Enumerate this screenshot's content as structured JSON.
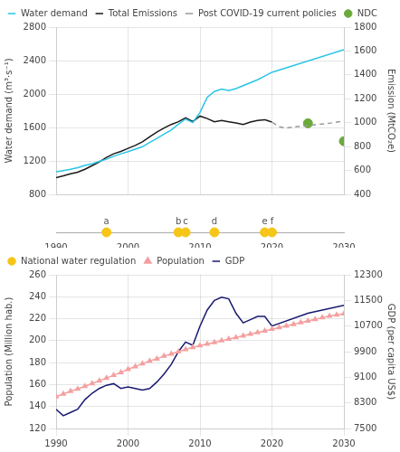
{
  "chart_data": [
    {
      "type": "line",
      "ylabel": "Water demand (m³·s⁻¹)",
      "y2label": "Emission (MtCO₂e)",
      "xlim": [
        1990,
        2030
      ],
      "xticks": [
        1990,
        2000,
        2010,
        2020,
        2030
      ],
      "ylim": [
        800,
        2800
      ],
      "yticks": [
        800,
        1200,
        1600,
        2000,
        2400,
        2800
      ],
      "y2lim": [
        400,
        1800
      ],
      "y2ticks": [
        400,
        600,
        800,
        1000,
        1200,
        1400,
        1600,
        1800
      ],
      "grid": true,
      "legend": "upper left",
      "tick_labels": "y",
      "series": [
        {
          "name": "Water demand",
          "color": "#29C5E6",
          "x": [
            1990,
            1991,
            1992,
            1993,
            1994,
            1995,
            1996,
            1997,
            1998,
            1999,
            2000,
            2001,
            2002,
            2003,
            2004,
            2005,
            2006,
            2007,
            2008,
            2009,
            2010,
            2011,
            2012,
            2013,
            2014,
            2015,
            2016,
            2017,
            2018,
            2019,
            2020
          ],
          "values": [
            1070,
            1085,
            1100,
            1120,
            1145,
            1165,
            1195,
            1220,
            1255,
            1285,
            1310,
            1340,
            1370,
            1420,
            1470,
            1520,
            1570,
            1640,
            1700,
            1660,
            1780,
            1960,
            2030,
            2060,
            2040,
            2065,
            2100,
            2135,
            2170,
            2215,
            2260
          ]
        },
        {
          "color": "#29C5E6",
          "x": [
            2020,
            2030
          ],
          "values": [
            2260,
            2530
          ]
        },
        {
          "name": "Total Emissions",
          "color": "#1a1a1a",
          "axis": "y2",
          "x": [
            1990,
            1991,
            1992,
            1993,
            1994,
            1995,
            1996,
            1997,
            1998,
            1999,
            2000,
            2001,
            2002,
            2003,
            2004,
            2005,
            2006,
            2007,
            2008,
            2009,
            2010,
            2011,
            2012,
            2013,
            2014,
            2015,
            2016,
            2017,
            2018,
            2019,
            2020
          ],
          "values": [
            540,
            555,
            572,
            585,
            610,
            640,
            672,
            710,
            740,
            760,
            785,
            810,
            840,
            882,
            922,
            955,
            985,
            1008,
            1040,
            1010,
            1055,
            1035,
            1008,
            1018,
            1008,
            998,
            985,
            1005,
            1018,
            1025,
            1005
          ]
        },
        {
          "name": "Post COVID-19 current policies",
          "color": "#999999",
          "line_style": "dashed",
          "axis": "y2",
          "x": [
            2019,
            2020,
            2021,
            2022,
            2023,
            2024,
            2025,
            2026,
            2027,
            2028,
            2029,
            2030
          ],
          "values": [
            1025,
            1005,
            965,
            955,
            965,
            970,
            975,
            982,
            988,
            995,
            1005,
            1015
          ]
        },
        {
          "name": "NDC",
          "type": "scatter",
          "marker": "circle",
          "color": "#6aaa3a",
          "axis": "y2",
          "x": [
            2025,
            2030
          ],
          "values": [
            995,
            845
          ]
        }
      ]
    },
    {
      "type": "line",
      "ylabel": "Population (Million hab.)",
      "y2label": "GDP (per capita US$)",
      "xlim": [
        1990,
        2030
      ],
      "xticks": [
        1990,
        2000,
        2010,
        2020,
        2030
      ],
      "ylim": [
        120,
        260
      ],
      "yticks": [
        120,
        140,
        160,
        180,
        200,
        220,
        240,
        260
      ],
      "y2lim": [
        7500,
        12300
      ],
      "y2ticks": [
        7500,
        8300,
        9100,
        9900,
        10700,
        11500,
        12300
      ],
      "grid": true,
      "legend": "upper left",
      "series": [
        {
          "name": "National water regulation",
          "type": "scatter",
          "marker": "circle",
          "color": "#F5C518",
          "x": [
            1997,
            2007,
            2008,
            2012,
            2019,
            2020
          ],
          "labels": [
            "a",
            "b",
            "c",
            "d",
            "e",
            "f"
          ]
        },
        {
          "name": "Population",
          "color": "#f4a0a0",
          "marker": "triangle",
          "x": [
            1990,
            1991,
            1992,
            1993,
            1994,
            1995,
            1996,
            1997,
            1998,
            1999,
            2000,
            2001,
            2002,
            2003,
            2004,
            2005,
            2006,
            2007,
            2008,
            2009,
            2010,
            2011,
            2012,
            2013,
            2014,
            2015,
            2016,
            2017,
            2018,
            2019,
            2020,
            2021,
            2022,
            2023,
            2024,
            2025,
            2026,
            2027,
            2028,
            2029,
            2030
          ],
          "values": [
            149,
            151.5,
            154,
            156,
            158.5,
            161,
            163.5,
            166,
            168.5,
            171,
            174,
            176.5,
            179,
            181.5,
            183.5,
            186,
            188,
            190,
            192,
            194,
            195.5,
            197,
            198.5,
            200,
            201.5,
            203,
            204.5,
            206,
            207.5,
            209,
            210.5,
            212,
            213.5,
            215,
            216.5,
            218,
            219.5,
            221,
            222.5,
            223.5,
            224.5
          ]
        },
        {
          "name": "GDP",
          "color": "#191970",
          "axis": "y2",
          "x": [
            1990,
            1991,
            1992,
            1993,
            1994,
            1995,
            1996,
            1997,
            1998,
            1999,
            2000,
            2001,
            2002,
            2003,
            2004,
            2005,
            2006,
            2007,
            2008,
            2009,
            2010,
            2011,
            2012,
            2013,
            2014,
            2015,
            2016,
            2017,
            2018,
            2019,
            2020,
            2025,
            2030
          ],
          "values": [
            8100,
            7900,
            8000,
            8100,
            8400,
            8600,
            8750,
            8850,
            8900,
            8750,
            8800,
            8750,
            8700,
            8750,
            8950,
            9200,
            9500,
            9900,
            10200,
            10100,
            10700,
            11200,
            11500,
            11600,
            11550,
            11100,
            10800,
            10900,
            11000,
            11000,
            10700,
            11100,
            11350
          ]
        }
      ]
    }
  ]
}
